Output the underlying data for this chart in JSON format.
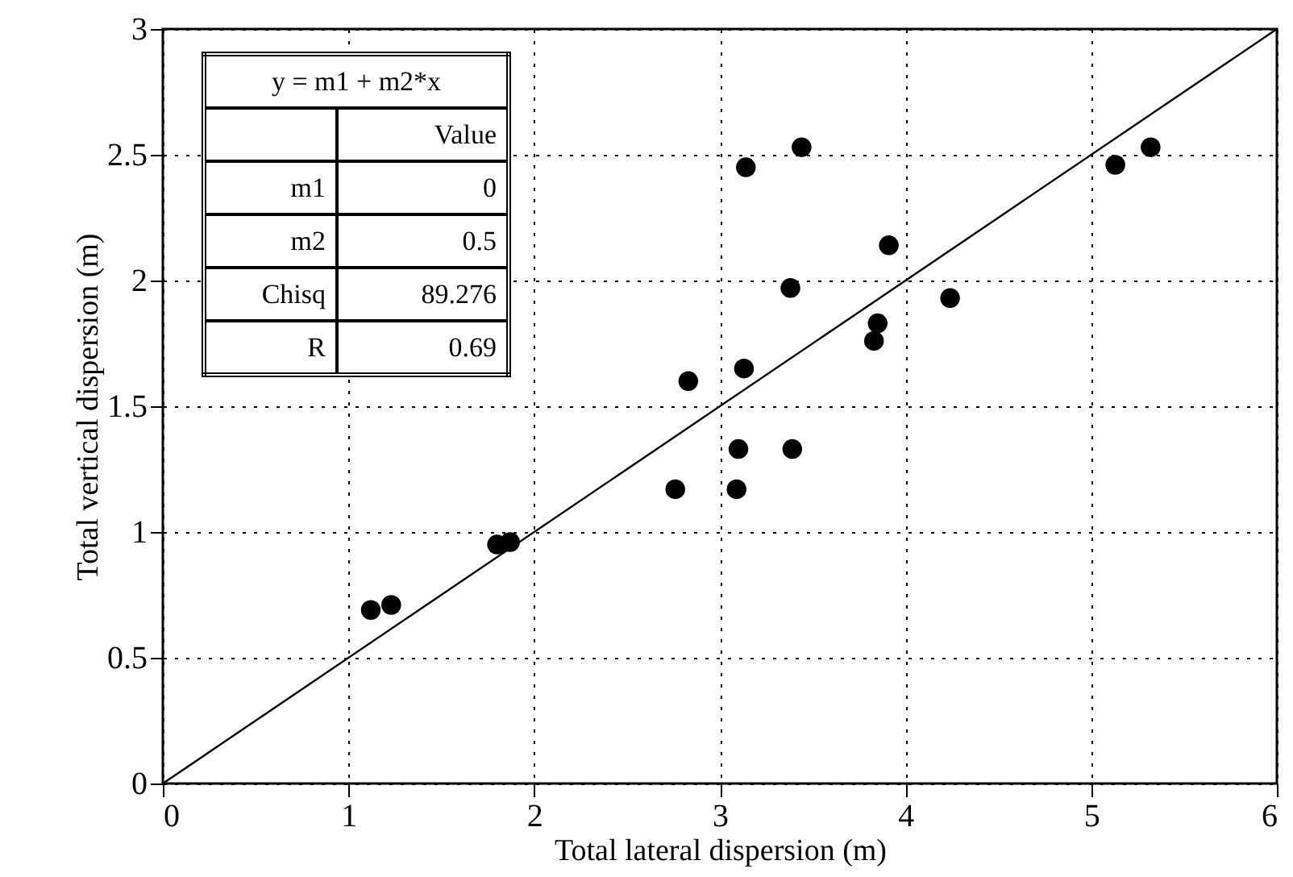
{
  "chart_data": {
    "type": "scatter",
    "xlabel": "Total lateral dispersion (m)",
    "ylabel": "Total vertical dispersion (m)",
    "xlim": [
      0,
      6
    ],
    "xticks": [
      0,
      1,
      2,
      3,
      4,
      5,
      6
    ],
    "ylim": [
      0,
      3
    ],
    "yticks": [
      0,
      0.5,
      1,
      1.5,
      2,
      2.5,
      3
    ],
    "grid": true,
    "series": [
      {
        "marker": "circle",
        "color": "#000000",
        "x": [
          1.12,
          1.23,
          1.8,
          1.87,
          2.76,
          2.83,
          3.09,
          3.1,
          3.39,
          3.13,
          3.14,
          3.44,
          3.38,
          3.91,
          3.85,
          3.83,
          4.24,
          5.13,
          5.32
        ],
        "values": [
          0.69,
          0.71,
          0.95,
          0.96,
          1.17,
          1.6,
          1.17,
          1.33,
          1.33,
          1.65,
          2.45,
          2.53,
          1.97,
          2.14,
          1.83,
          1.76,
          1.93,
          2.46,
          2.53
        ]
      },
      {
        "type": "line",
        "color": "#000000",
        "x": [
          0,
          6
        ],
        "values": [
          0,
          3
        ]
      }
    ],
    "annotations": [
      "y = m1 + m2*x",
      "Value",
      "m1",
      "0",
      "m2",
      "0.5",
      "Chisq",
      "89.276",
      "R",
      "0.69"
    ]
  }
}
